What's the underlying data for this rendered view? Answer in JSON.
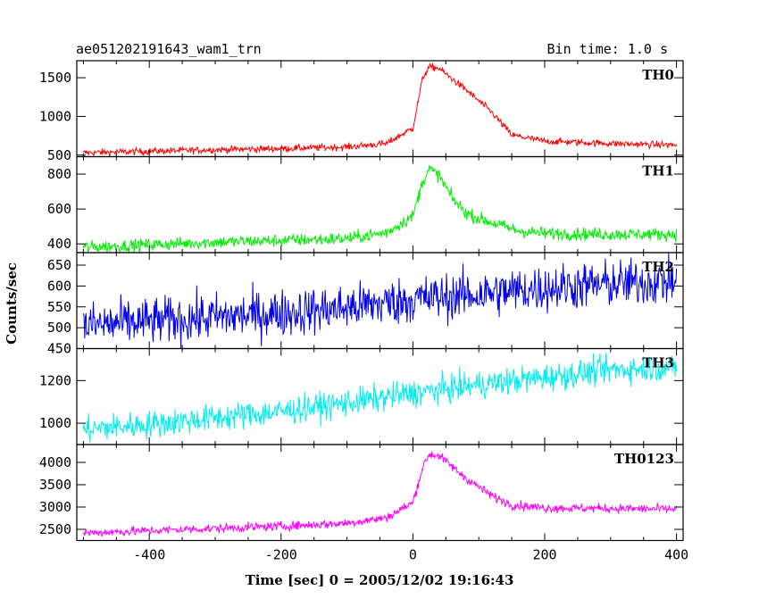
{
  "chart_data": {
    "type": "line",
    "title": "ae051202191643_wam1_trn",
    "bin_time_label": "Bin time: 1.0 s",
    "xlabel": "Time [sec] 0 = 2005/12/02 19:16:43",
    "ylabel": "Counts/sec",
    "xlim": [
      -510,
      410
    ],
    "x_ticks": [
      -400,
      -200,
      0,
      200,
      400
    ],
    "panels": [
      {
        "name": "TH0",
        "color": "#ff0000",
        "ylim": [
          480,
          1720
        ],
        "y_ticks": [
          500,
          1000,
          1500
        ],
        "noise": 22,
        "x": [
          -500,
          -400,
          -300,
          -200,
          -100,
          -40,
          0,
          15,
          25,
          40,
          60,
          80,
          100,
          120,
          150,
          200,
          300,
          400
        ],
        "y": [
          530,
          550,
          570,
          585,
          605,
          650,
          850,
          1500,
          1640,
          1620,
          1480,
          1350,
          1200,
          1050,
          760,
          680,
          650,
          630
        ]
      },
      {
        "name": "TH1",
        "color": "#00ee00",
        "ylim": [
          350,
          900
        ],
        "y_ticks": [
          400,
          600,
          800
        ],
        "noise": 18,
        "x": [
          -500,
          -400,
          -300,
          -200,
          -100,
          -40,
          0,
          15,
          25,
          40,
          60,
          80,
          100,
          130,
          160,
          200,
          300,
          400
        ],
        "y": [
          380,
          395,
          410,
          420,
          430,
          465,
          560,
          760,
          830,
          790,
          660,
          580,
          545,
          510,
          475,
          460,
          455,
          455
        ]
      },
      {
        "name": "TH2",
        "color": "#0000ee",
        "ylim": [
          450,
          680
        ],
        "y_ticks": [
          450,
          500,
          550,
          600,
          650
        ],
        "noise": 28,
        "x": [
          -500,
          -400,
          -300,
          -200,
          -100,
          0,
          100,
          200,
          300,
          400
        ],
        "y": [
          505,
          515,
          525,
          535,
          548,
          568,
          580,
          595,
          605,
          612
        ]
      },
      {
        "name": "TH3",
        "color": "#00eeee",
        "ylim": [
          900,
          1350
        ],
        "y_ticks": [
          1000,
          1200
        ],
        "noise": 32,
        "x": [
          -500,
          -400,
          -300,
          -200,
          -100,
          0,
          100,
          200,
          300,
          400
        ],
        "y": [
          970,
          995,
          1025,
          1055,
          1095,
          1140,
          1180,
          1215,
          1250,
          1265
        ]
      },
      {
        "name": "TH0123",
        "color": "#ff00ff",
        "ylim": [
          2250,
          4400
        ],
        "y_ticks": [
          2500,
          3000,
          3500,
          4000
        ],
        "noise": 50,
        "x": [
          -500,
          -400,
          -300,
          -200,
          -100,
          -40,
          0,
          15,
          25,
          40,
          60,
          80,
          100,
          120,
          150,
          200,
          300,
          400
        ],
        "y": [
          2420,
          2470,
          2520,
          2570,
          2640,
          2760,
          3100,
          3900,
          4180,
          4150,
          3900,
          3650,
          3450,
          3250,
          3050,
          2980,
          2970,
          2950
        ]
      }
    ]
  }
}
